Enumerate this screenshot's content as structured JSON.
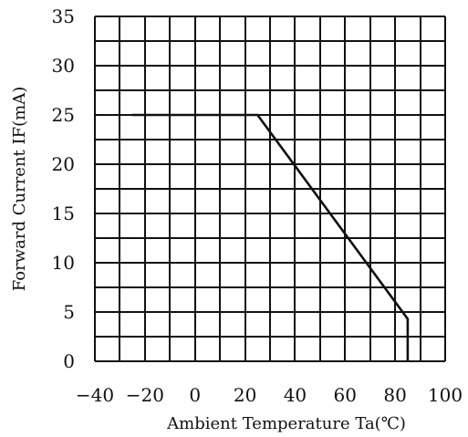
{
  "chart_data": {
    "type": "line",
    "title": "",
    "xlabel": "Ambient Temperature Ta(℃)",
    "ylabel": "Forward Current IF(mA)",
    "xlim": [
      -40,
      100
    ],
    "ylim": [
      0,
      35
    ],
    "xticks": [
      "-40",
      "-20",
      "0",
      "20",
      "40",
      "60",
      "80",
      "100"
    ],
    "yticks": [
      "0",
      "5",
      "10",
      "15",
      "20",
      "25",
      "30",
      "35"
    ],
    "grid": true,
    "grid_x_step": 10,
    "grid_y_step": 2.5,
    "series": [
      {
        "color": "#111111",
        "x": [
          -25,
          25,
          85,
          85
        ],
        "y": [
          25,
          25,
          4.3,
          0
        ]
      }
    ]
  }
}
